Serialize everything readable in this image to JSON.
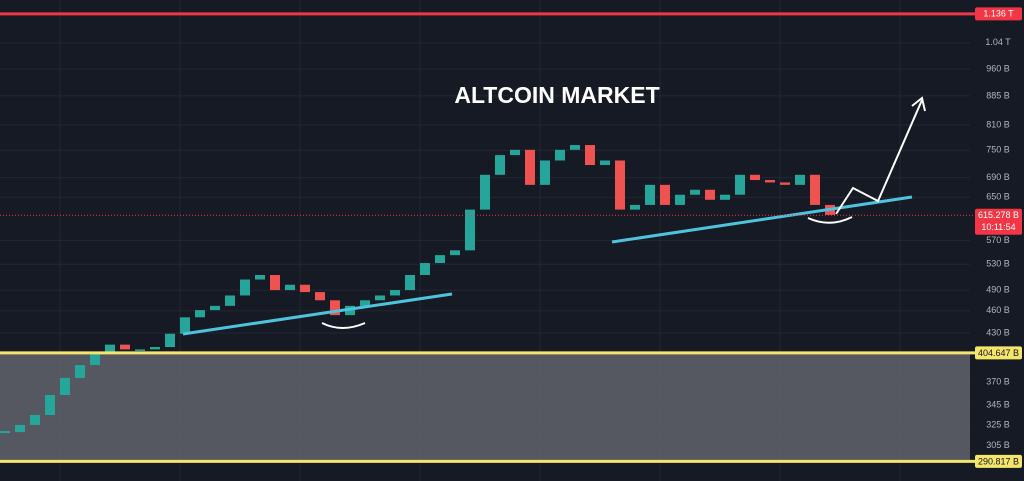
{
  "chart_data": {
    "type": "candlestick",
    "title": "ALTCOIN MARKET",
    "log_scale": true,
    "grid": true,
    "up_color": "#26a69a",
    "down_color": "#ef5350",
    "ylim": [
      274,
      1185
    ],
    "yticks": [
      {
        "value": 305,
        "label": "305 B"
      },
      {
        "value": 325,
        "label": "325 B"
      },
      {
        "value": 345,
        "label": "345 B"
      },
      {
        "value": 370,
        "label": "370 B"
      },
      {
        "value": 430,
        "label": "430 B"
      },
      {
        "value": 460,
        "label": "460 B"
      },
      {
        "value": 490,
        "label": "490 B"
      },
      {
        "value": 530,
        "label": "530 B"
      },
      {
        "value": 570,
        "label": "570 B"
      },
      {
        "value": 650,
        "label": "650 B"
      },
      {
        "value": 690,
        "label": "690 B"
      },
      {
        "value": 750,
        "label": "750 B"
      },
      {
        "value": 810,
        "label": "810 B"
      },
      {
        "value": 885,
        "label": "885 B"
      },
      {
        "value": 960,
        "label": "960 B"
      },
      {
        "value": 1040,
        "label": "1.04 T"
      }
    ],
    "values": [
      318,
      325,
      335,
      356,
      375,
      390,
      406,
      415,
      409,
      409,
      412,
      429,
      451,
      461,
      467,
      482,
      506,
      513,
      490,
      498,
      487,
      475,
      454,
      467,
      475,
      482,
      490,
      513,
      532,
      545,
      553,
      626,
      696,
      739,
      751,
      675,
      727,
      751,
      762,
      717,
      727,
      626,
      635,
      675,
      635,
      655,
      665,
      645,
      655,
      696,
      685,
      680,
      675,
      696,
      635,
      616
    ],
    "levels": [
      {
        "value": 1136,
        "label": "1.136 T",
        "color": "#f23645"
      },
      {
        "value": 404.647,
        "label": "404.647 B",
        "color": "#f5e56b"
      },
      {
        "value": 290.817,
        "label": "290.817 B",
        "color": "#f5e56b"
      }
    ],
    "last_price": {
      "value": 615.278,
      "label": "615.278 B",
      "countdown": "10:11:54",
      "color": "#f23645"
    }
  }
}
